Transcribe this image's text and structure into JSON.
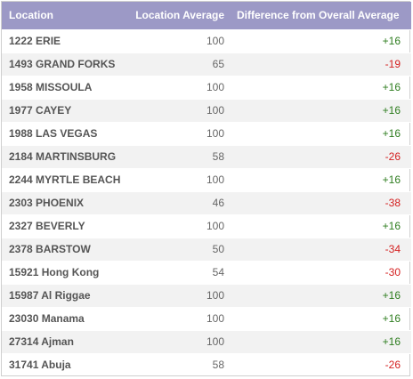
{
  "table": {
    "columns": [
      "Location",
      "Location Average",
      "Difference from Overall Average"
    ],
    "rows": [
      {
        "location": "1222 ERIE",
        "average": "100",
        "difference": "+16"
      },
      {
        "location": "1493 GRAND FORKS",
        "average": "65",
        "difference": "-19"
      },
      {
        "location": "1958 MISSOULA",
        "average": "100",
        "difference": "+16"
      },
      {
        "location": "1977 CAYEY",
        "average": "100",
        "difference": "+16"
      },
      {
        "location": "1988 LAS VEGAS",
        "average": "100",
        "difference": "+16"
      },
      {
        "location": "2184 MARTINSBURG",
        "average": "58",
        "difference": "-26"
      },
      {
        "location": "2244 MYRTLE BEACH",
        "average": "100",
        "difference": "+16"
      },
      {
        "location": "2303 PHOENIX",
        "average": "46",
        "difference": "-38"
      },
      {
        "location": "2327 BEVERLY",
        "average": "100",
        "difference": "+16"
      },
      {
        "location": "2378 BARSTOW",
        "average": "50",
        "difference": "-34"
      },
      {
        "location": "15921 Hong Kong",
        "average": "54",
        "difference": "-30"
      },
      {
        "location": "15987 Al Riggae",
        "average": "100",
        "difference": "+16"
      },
      {
        "location": "23030 Manama",
        "average": "100",
        "difference": "+16"
      },
      {
        "location": "27314 Ajman",
        "average": "100",
        "difference": "+16"
      },
      {
        "location": "31741 Abuja",
        "average": "58",
        "difference": "-26"
      }
    ]
  },
  "colors": {
    "header_bg": "#9c99c6",
    "positive": "#2e7d1f",
    "negative": "#d42020",
    "row_alt": "#f2f2f2"
  }
}
